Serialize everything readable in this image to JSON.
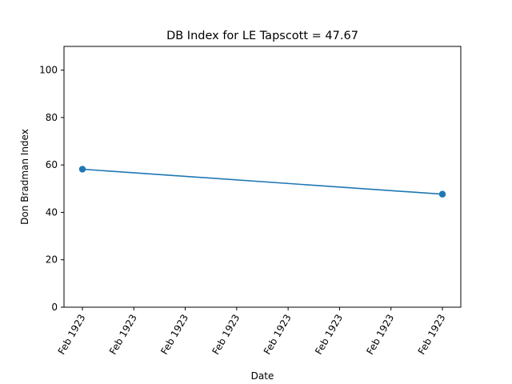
{
  "chart_data": {
    "type": "line",
    "title": "DB Index for LE Tapscott = 47.67",
    "xlabel": "Date",
    "ylabel": "Don Bradman Index",
    "x_tick_labels": [
      "Feb 1923",
      "Feb 1923",
      "Feb 1923",
      "Feb 1923",
      "Feb 1923",
      "Feb 1923",
      "Feb 1923",
      "Feb 1923"
    ],
    "y_ticks": [
      0,
      20,
      40,
      60,
      80,
      100
    ],
    "ylim": [
      0,
      110
    ],
    "grid": false,
    "series": [
      {
        "color": "#1f77b4",
        "marker": "circle",
        "points": [
          {
            "x_index": 0,
            "y": 58.2
          },
          {
            "x_index": 7,
            "y": 47.67
          }
        ]
      }
    ]
  }
}
